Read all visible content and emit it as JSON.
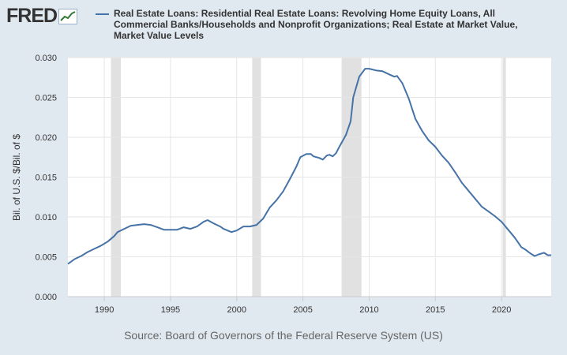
{
  "logo": {
    "text": "FRED",
    "icon": "line-chart-icon"
  },
  "chart_data": {
    "type": "line",
    "title": "Real Estate Loans: Residential Real Estate Loans: Revolving Home Equity Loans, All Commercial Banks/Households and Nonprofit Organizations; Real Estate at Market Value, Market Value Levels",
    "xlabel": "",
    "ylabel": "Bil. of U.S. $/Bil. of $",
    "xlim": [
      1987.25,
      2023.75
    ],
    "ylim": [
      0,
      0.03
    ],
    "x_ticks": [
      "1990",
      "1995",
      "2000",
      "2005",
      "2010",
      "2015",
      "2020"
    ],
    "y_ticks": [
      "0.000",
      "0.005",
      "0.010",
      "0.015",
      "0.020",
      "0.025",
      "0.030"
    ],
    "grid": true,
    "legend": "top",
    "recessions": [
      [
        1990.5,
        1991.25
      ],
      [
        2001.17,
        2001.83
      ],
      [
        2007.92,
        2009.42
      ],
      [
        2020.08,
        2020.33
      ]
    ],
    "series": [
      {
        "name": "Real Estate Loans: Residential Real Estate Loans: Revolving Home Equity Loans, All Commercial Banks/Households and Nonprofit Organizations; Real Estate at Market Value, Market Value Levels",
        "color": "#4572a7",
        "points": [
          [
            1987.25,
            0.0041
          ],
          [
            1987.75,
            0.0047
          ],
          [
            1988.25,
            0.0051
          ],
          [
            1988.75,
            0.0056
          ],
          [
            1989.25,
            0.006
          ],
          [
            1989.75,
            0.0064
          ],
          [
            1990.25,
            0.0069
          ],
          [
            1990.75,
            0.0076
          ],
          [
            1991.0,
            0.0081
          ],
          [
            1991.5,
            0.0085
          ],
          [
            1992.0,
            0.0089
          ],
          [
            1992.5,
            0.009
          ],
          [
            1993.0,
            0.0091
          ],
          [
            1993.5,
            0.009
          ],
          [
            1994.0,
            0.0087
          ],
          [
            1994.5,
            0.0084
          ],
          [
            1995.0,
            0.0084
          ],
          [
            1995.5,
            0.0084
          ],
          [
            1996.0,
            0.0087
          ],
          [
            1996.5,
            0.0085
          ],
          [
            1997.0,
            0.0088
          ],
          [
            1997.5,
            0.0094
          ],
          [
            1997.8,
            0.0096
          ],
          [
            1998.25,
            0.0092
          ],
          [
            1998.75,
            0.0088
          ],
          [
            1999.0,
            0.0085
          ],
          [
            1999.6,
            0.0081
          ],
          [
            2000.0,
            0.0083
          ],
          [
            2000.5,
            0.0088
          ],
          [
            2001.0,
            0.0088
          ],
          [
            2001.5,
            0.009
          ],
          [
            2002.0,
            0.0098
          ],
          [
            2002.5,
            0.0112
          ],
          [
            2003.0,
            0.0121
          ],
          [
            2003.5,
            0.0132
          ],
          [
            2004.0,
            0.0147
          ],
          [
            2004.5,
            0.0163
          ],
          [
            2004.8,
            0.0175
          ],
          [
            2005.25,
            0.0179
          ],
          [
            2005.6,
            0.0179
          ],
          [
            2005.8,
            0.0176
          ],
          [
            2006.25,
            0.0174
          ],
          [
            2006.5,
            0.0172
          ],
          [
            2006.8,
            0.0177
          ],
          [
            2007.0,
            0.0178
          ],
          [
            2007.25,
            0.0176
          ],
          [
            2007.5,
            0.018
          ],
          [
            2007.75,
            0.0188
          ],
          [
            2008.25,
            0.0203
          ],
          [
            2008.6,
            0.022
          ],
          [
            2008.8,
            0.025
          ],
          [
            2009.25,
            0.0276
          ],
          [
            2009.7,
            0.0286
          ],
          [
            2010.0,
            0.0286
          ],
          [
            2010.5,
            0.0284
          ],
          [
            2011.0,
            0.0283
          ],
          [
            2011.5,
            0.0279
          ],
          [
            2011.9,
            0.0276
          ],
          [
            2012.1,
            0.0277
          ],
          [
            2012.5,
            0.0268
          ],
          [
            2013.0,
            0.0248
          ],
          [
            2013.5,
            0.0223
          ],
          [
            2014.0,
            0.0208
          ],
          [
            2014.5,
            0.0196
          ],
          [
            2015.0,
            0.0188
          ],
          [
            2015.5,
            0.0177
          ],
          [
            2016.0,
            0.0168
          ],
          [
            2016.5,
            0.0156
          ],
          [
            2017.0,
            0.0143
          ],
          [
            2017.5,
            0.0133
          ],
          [
            2018.0,
            0.0123
          ],
          [
            2018.5,
            0.0113
          ],
          [
            2019.0,
            0.0107
          ],
          [
            2019.5,
            0.0101
          ],
          [
            2020.0,
            0.0094
          ],
          [
            2020.5,
            0.0084
          ],
          [
            2021.0,
            0.0074
          ],
          [
            2021.5,
            0.0062
          ],
          [
            2021.8,
            0.0059
          ],
          [
            2022.2,
            0.0054
          ],
          [
            2022.5,
            0.0051
          ],
          [
            2022.8,
            0.0053
          ],
          [
            2023.2,
            0.0055
          ],
          [
            2023.5,
            0.0052
          ],
          [
            2023.75,
            0.0052
          ]
        ]
      }
    ]
  },
  "source": "Source: Board of Governors of the Federal Reserve System (US)"
}
